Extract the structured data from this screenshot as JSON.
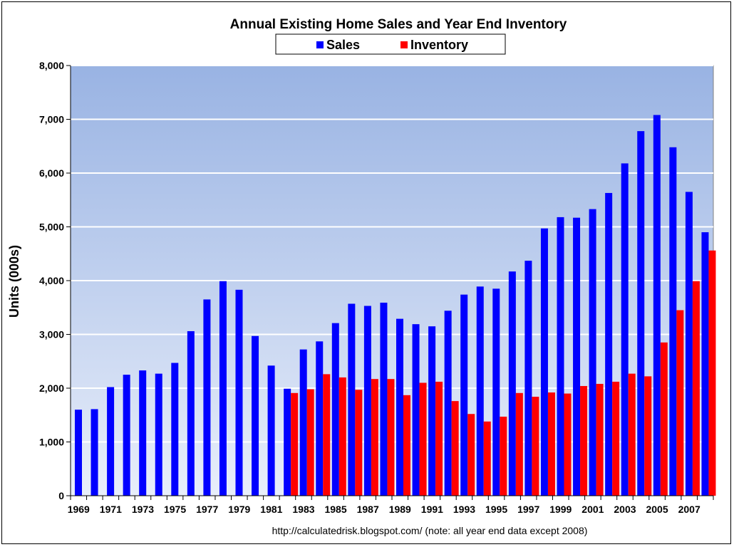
{
  "chart_data": {
    "type": "bar",
    "title": "Annual Existing Home Sales and Year End Inventory",
    "ylabel": "Units (000s)",
    "xlabel": "",
    "ylim": [
      0,
      8000
    ],
    "yticks": [
      0,
      1000,
      2000,
      3000,
      4000,
      5000,
      6000,
      7000,
      8000
    ],
    "ytick_labels": [
      "0",
      "1,000",
      "2,000",
      "3,000",
      "4,000",
      "5,000",
      "6,000",
      "7,000",
      "8,000"
    ],
    "grid": true,
    "legend_position": "top-center",
    "categories": [
      1969,
      1970,
      1971,
      1972,
      1973,
      1974,
      1975,
      1976,
      1977,
      1978,
      1979,
      1980,
      1981,
      1982,
      1983,
      1984,
      1985,
      1986,
      1987,
      1988,
      1989,
      1990,
      1991,
      1992,
      1993,
      1994,
      1995,
      1996,
      1997,
      1998,
      1999,
      2000,
      2001,
      2002,
      2003,
      2004,
      2005,
      2006,
      2007,
      2008
    ],
    "xtick_labels": [
      "1969",
      "1971",
      "1973",
      "1975",
      "1977",
      "1979",
      "1981",
      "1983",
      "1985",
      "1987",
      "1989",
      "1991",
      "1993",
      "1995",
      "1997",
      "1999",
      "2001",
      "2003",
      "2005",
      "2007"
    ],
    "series": [
      {
        "name": "Sales",
        "color": "#0000ff",
        "values": [
          1600,
          1610,
          2020,
          2250,
          2330,
          2270,
          2470,
          3060,
          3650,
          3990,
          3830,
          2970,
          2420,
          1990,
          2720,
          2870,
          3210,
          3570,
          3530,
          3590,
          3290,
          3190,
          3150,
          3440,
          3740,
          3890,
          3850,
          4170,
          4370,
          4970,
          5180,
          5170,
          5330,
          5630,
          6180,
          6780,
          7080,
          6480,
          5650,
          4900
        ]
      },
      {
        "name": "Inventory",
        "color": "#ff0000",
        "values": [
          null,
          null,
          null,
          null,
          null,
          null,
          null,
          null,
          null,
          null,
          null,
          null,
          null,
          1910,
          1980,
          2260,
          2200,
          1970,
          2170,
          2170,
          1870,
          2100,
          2120,
          1760,
          1520,
          1380,
          1470,
          1910,
          1840,
          1920,
          1900,
          2040,
          2080,
          2120,
          2270,
          2220,
          2850,
          3450,
          3990,
          4560
        ]
      }
    ],
    "footer": "http://calculatedrisk.blogspot.com/ (note: all year end data except 2008)"
  }
}
